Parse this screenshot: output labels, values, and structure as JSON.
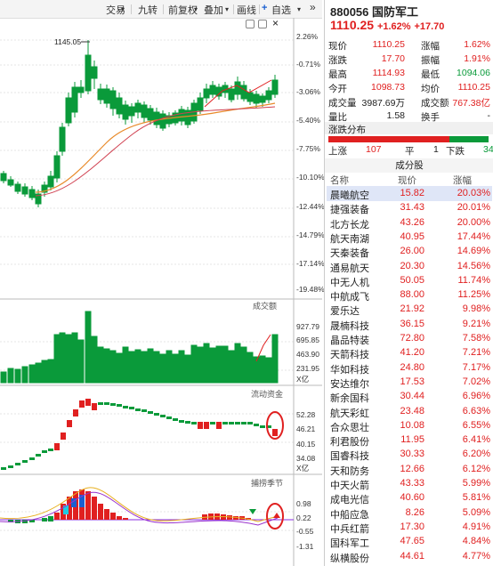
{
  "toolbar": {
    "items": [
      "交易",
      "九转",
      "前复权",
      "叠加",
      "画线",
      "自选"
    ],
    "more_icon": "double-chevron-right"
  },
  "quote": {
    "code": "880056",
    "name": "国防军工",
    "price": "1110.25",
    "change_pct": "+1.62%",
    "change": "+17.70",
    "rows": [
      {
        "l1": "现价",
        "v1": "1110.25",
        "l2": "涨幅",
        "v2": "1.62%"
      },
      {
        "l1": "涨跌",
        "v1": "17.70",
        "l2": "振幅",
        "v2": "1.91%"
      },
      {
        "l1": "最高",
        "v1": "1114.93",
        "l2": "最低",
        "v2": "1094.06"
      },
      {
        "l1": "今开",
        "v1": "1098.73",
        "l2": "均价",
        "v2": "1110.25"
      },
      {
        "l1": "成交量",
        "v1": "3987.69万",
        "l2": "成交额",
        "v2": "767.38亿"
      },
      {
        "l1": "量比",
        "v1": "1.58",
        "l2": "换手",
        "v2": "-"
      }
    ],
    "dist_title": "涨跌分布",
    "up_label": "上涨",
    "up_count": "107",
    "flat_label": "平",
    "flat_count": "1",
    "down_label": "下跌",
    "down_count": "34"
  },
  "components": {
    "title": "成分股",
    "headers": [
      "名称",
      "现价",
      "涨幅"
    ],
    "rows": [
      [
        "晨曦航空",
        "15.82",
        "20.03%"
      ],
      [
        "捷强装备",
        "31.43",
        "20.01%"
      ],
      [
        "北方长龙",
        "43.26",
        "20.00%"
      ],
      [
        "航天南湖",
        "40.95",
        "17.44%"
      ],
      [
        "天秦装备",
        "26.00",
        "14.69%"
      ],
      [
        "通易航天",
        "20.30",
        "14.56%"
      ],
      [
        "中无人机",
        "50.05",
        "11.74%"
      ],
      [
        "中航成飞",
        "88.00",
        "11.25%"
      ],
      [
        "爱乐达",
        "21.92",
        "9.98%"
      ],
      [
        "晟楠科技",
        "36.15",
        "9.21%"
      ],
      [
        "晶品特装",
        "72.80",
        "7.58%"
      ],
      [
        "天箭科技",
        "41.20",
        "7.21%"
      ],
      [
        "华如科技",
        "24.80",
        "7.17%"
      ],
      [
        "安达维尔",
        "17.53",
        "7.02%"
      ],
      [
        "新余国科",
        "30.44",
        "6.96%"
      ],
      [
        "航天彩虹",
        "23.48",
        "6.63%"
      ],
      [
        "合众思壮",
        "10.08",
        "6.55%"
      ],
      [
        "利君股份",
        "11.95",
        "6.41%"
      ],
      [
        "国睿科技",
        "30.33",
        "6.20%"
      ],
      [
        "天和防务",
        "12.66",
        "6.12%"
      ],
      [
        "中天火箭",
        "43.33",
        "5.99%"
      ],
      [
        "成电光信",
        "40.60",
        "5.81%"
      ],
      [
        "中船应急",
        "8.26",
        "5.09%"
      ],
      [
        "中兵红箭",
        "17.30",
        "4.91%"
      ],
      [
        "国科军工",
        "47.65",
        "4.84%"
      ],
      [
        "纵横股份",
        "44.61",
        "4.77%"
      ]
    ]
  },
  "chart": {
    "peak_label": "1145.05",
    "price_axis": [
      "2.26%",
      "-0.71%",
      "-3.06%",
      "-5.40%",
      "-7.75%",
      "-10.10%",
      "-12.44%",
      "-14.79%",
      "-17.14%",
      "-19.48%"
    ],
    "volume_title": "成交额",
    "volume_axis": [
      "927.79",
      "695.85",
      "463.90",
      "231.95",
      "X亿"
    ],
    "flow_title": "流动资金",
    "flow_axis": [
      "52.28",
      "46.21",
      "40.15",
      "34.08",
      "X亿"
    ],
    "season_title": "捕捞季节",
    "season_axis": [
      "0.98",
      "0.22",
      "-0.55",
      "-1.31"
    ]
  },
  "colors": {
    "up": "#e02020",
    "down": "#0a9a3a",
    "accent": "#1a5fd0"
  }
}
